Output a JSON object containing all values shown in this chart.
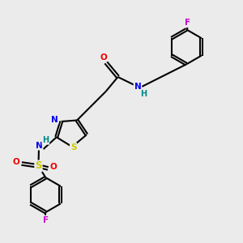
{
  "bg_color": "#ebebeb",
  "atom_colors": {
    "C": "#000000",
    "N": "#0000ee",
    "O": "#ee0000",
    "S_thiazole": "#cccc00",
    "S_sulfonyl": "#cccc00",
    "F": "#cc00cc",
    "H": "#008888"
  },
  "bond_color": "#000000",
  "figsize": [
    3.0,
    3.0
  ],
  "dpi": 100
}
